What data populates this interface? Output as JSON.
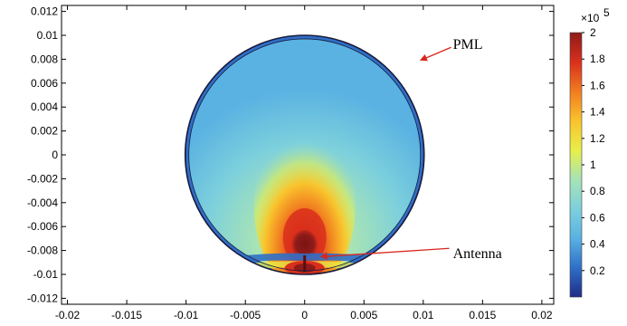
{
  "chart_data": {
    "type": "heatmap",
    "title": "",
    "xlabel": "",
    "ylabel": "",
    "xlim": [
      -0.0205,
      0.021
    ],
    "ylim": [
      -0.0125,
      0.0125
    ],
    "x_ticks": [
      "-0.02",
      "-0.015",
      "-0.01",
      "-0.005",
      "0",
      "0.005",
      "0.01",
      "0.015",
      "0.02"
    ],
    "x_tick_values": [
      -0.02,
      -0.015,
      -0.01,
      -0.005,
      0,
      0.005,
      0.01,
      0.015,
      0.02
    ],
    "y_ticks": [
      "0.012",
      "0.01",
      "0.008",
      "0.006",
      "0.004",
      "0.002",
      "0",
      "-0.002",
      "-0.004",
      "-0.006",
      "-0.008",
      "-0.01",
      "-0.012"
    ],
    "y_tick_values": [
      0.012,
      0.01,
      0.008,
      0.006,
      0.004,
      0.002,
      0,
      -0.002,
      -0.004,
      -0.006,
      -0.008,
      -0.01,
      -0.012
    ],
    "domain": {
      "shape": "circle",
      "center": [
        0,
        0
      ],
      "radius": 0.01,
      "pml_inner_radius": 0.0097
    },
    "colorbar": {
      "min": 0,
      "max": 2,
      "ticks": [
        "0.2",
        "0.4",
        "0.6",
        "0.8",
        "1",
        "1.2",
        "1.4",
        "1.6",
        "1.8",
        "2"
      ],
      "tick_values": [
        0.2,
        0.4,
        0.6,
        0.8,
        1,
        1.2,
        1.4,
        1.6,
        1.8,
        2
      ],
      "multiplier": "×10",
      "exponent": "5",
      "colormap": "rainbow",
      "colors": [
        "#1f2d86",
        "#2f6fc8",
        "#59b2e2",
        "#7dd0dc",
        "#a7e3b5",
        "#e8ef4a",
        "#f9c32c",
        "#f17c20",
        "#d92f1c",
        "#8e1b1a"
      ]
    },
    "field_values": {
      "background": 0.75,
      "source_lobe_peak": 2,
      "source_position": [
        0,
        -0.0078
      ]
    },
    "annotations": [
      {
        "text": "PML",
        "point": [
          0.0069,
          -0.0063
        ],
        "arrow_to": [
          0.0097,
          0.0079
        ]
      },
      {
        "text": "Antenna",
        "point": [
          0.0092,
          -0.0085
        ],
        "arrow_to": [
          0.0013,
          -0.0085
        ]
      }
    ],
    "grid": false,
    "legend": "none"
  }
}
